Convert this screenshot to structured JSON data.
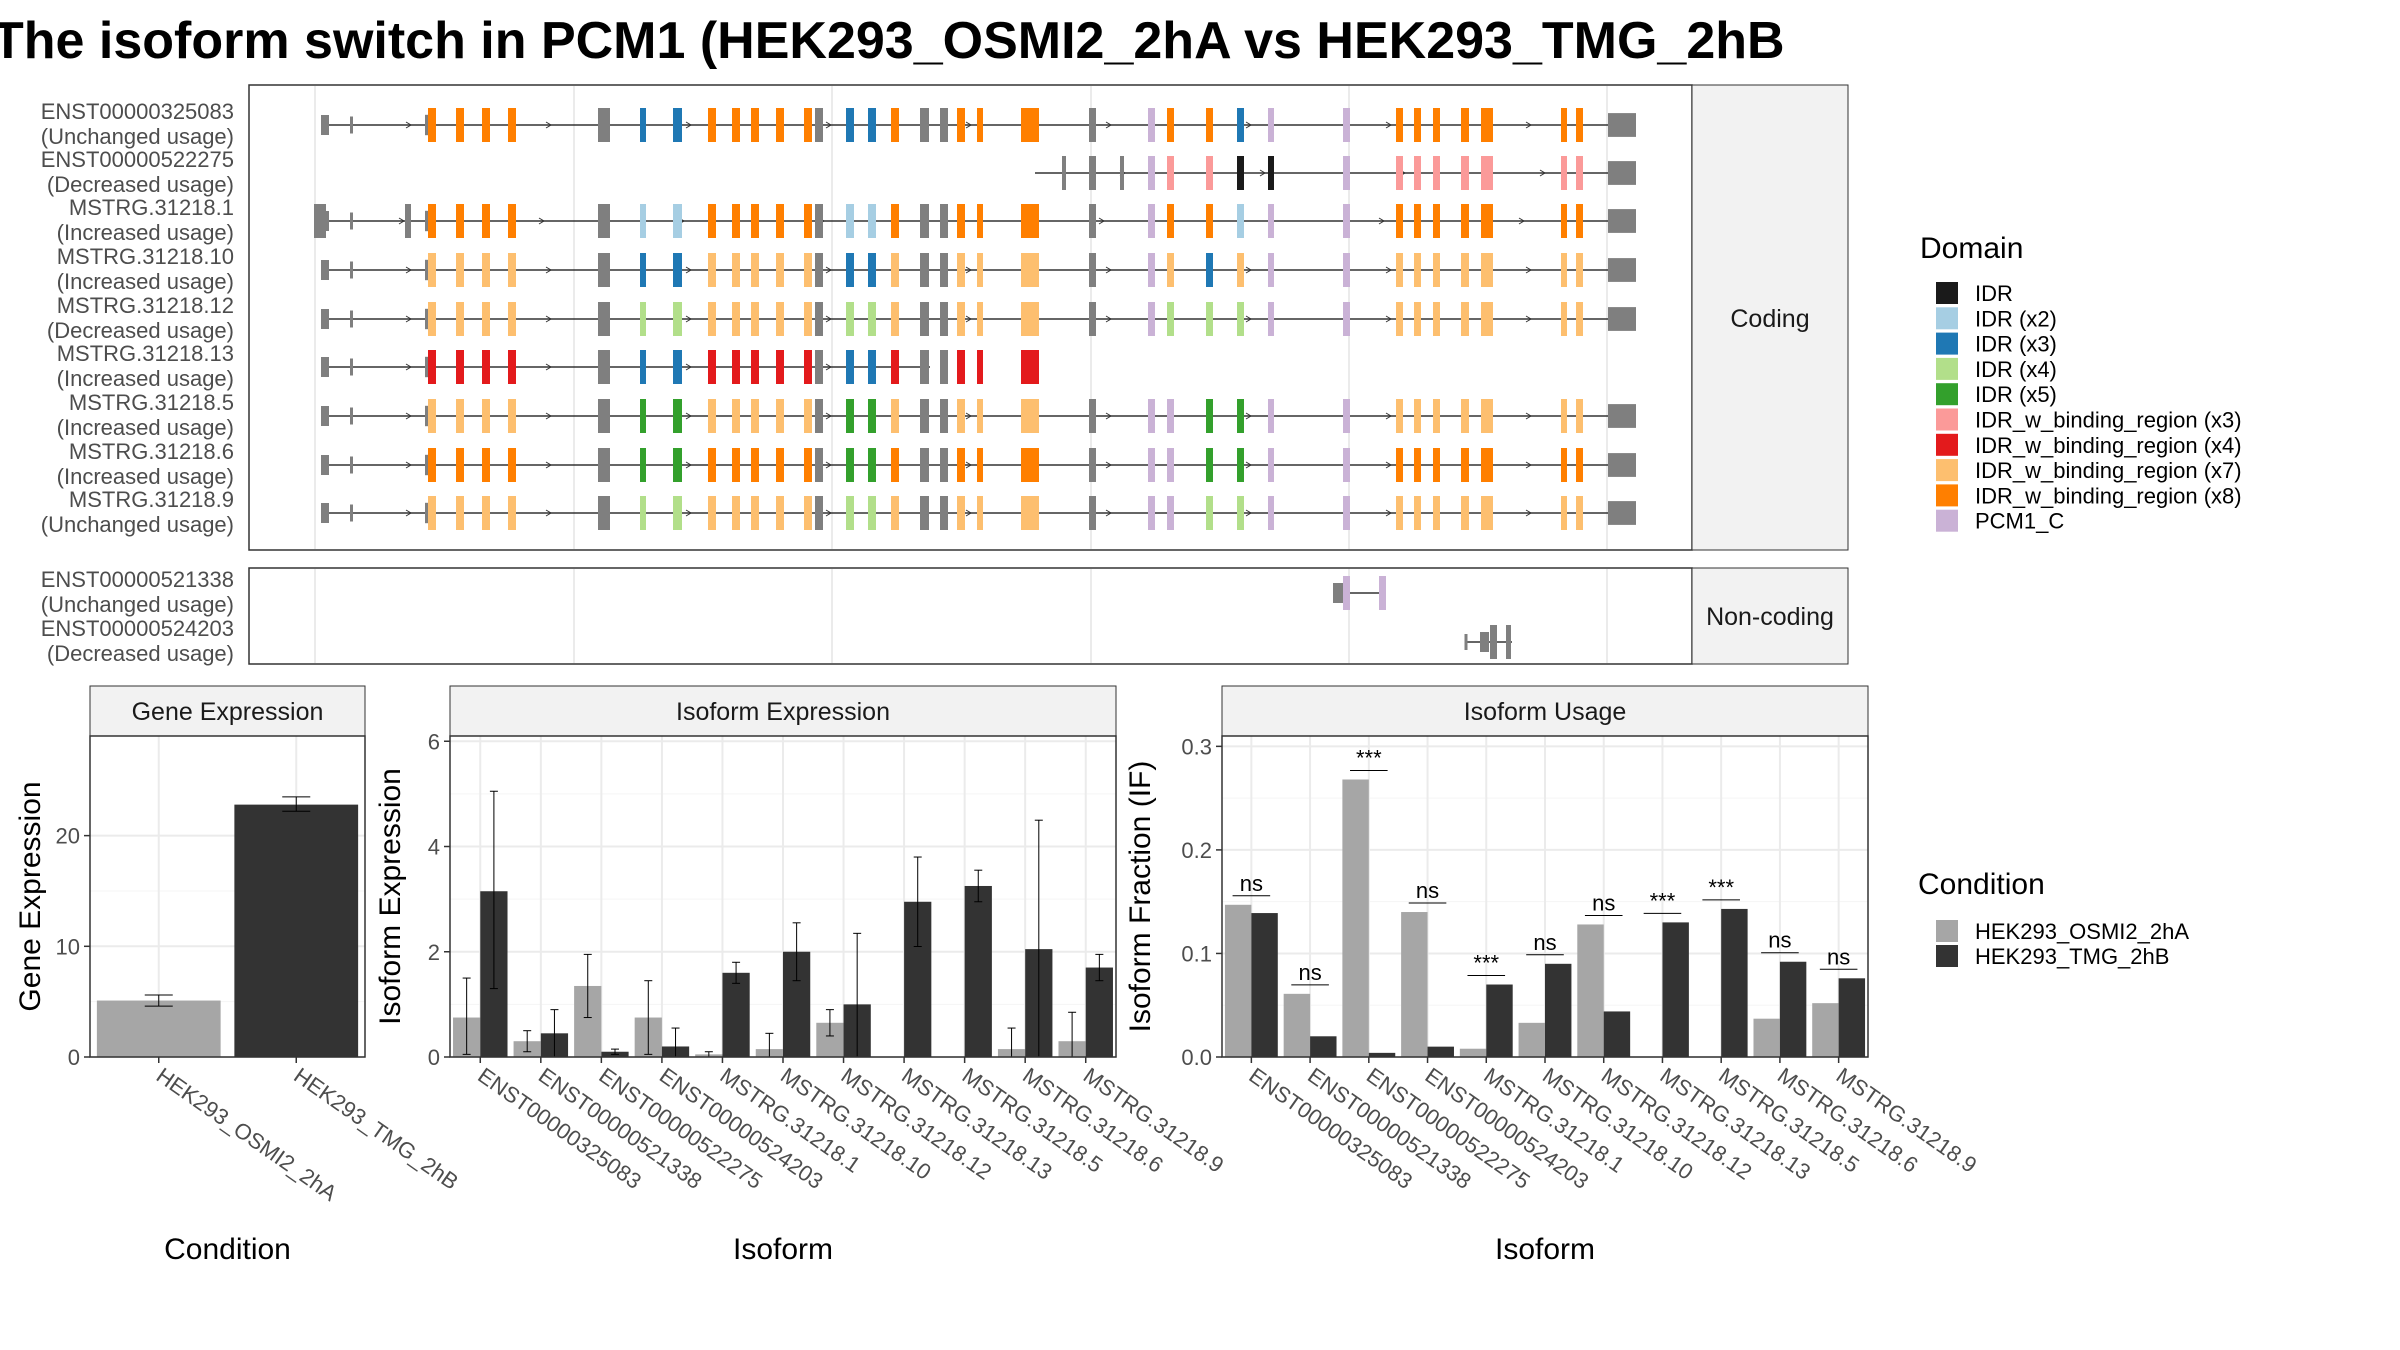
{
  "title": "The isoform switch in PCM1 (HEK293_OSMI2_2hA vs HEK293_TMG_2hB",
  "colors": {
    "IDR": "#1a1a1a",
    "IDR (x2)": "#a6cee3",
    "IDR (x3)": "#1f78b4",
    "IDR (x4)": "#b2df8a",
    "IDR (x5)": "#33a02c",
    "IDR_w_binding_region (x3)": "#fb9a99",
    "IDR_w_binding_region (x4)": "#e31a1c",
    "IDR_w_binding_region (x7)": "#fdbf6f",
    "IDR_w_binding_region (x8)": "#ff7f00",
    "PCM1_C": "#cab2d6",
    "noncoding": "#7f7f7f",
    "cond_a": "#a6a6a6",
    "cond_b": "#333333"
  },
  "domain_legend": {
    "title": "Domain",
    "items": [
      "IDR",
      "IDR (x2)",
      "IDR (x3)",
      "IDR (x4)",
      "IDR (x5)",
      "IDR_w_binding_region (x3)",
      "IDR_w_binding_region (x4)",
      "IDR_w_binding_region (x7)",
      "IDR_w_binding_region (x8)",
      "PCM1_C"
    ]
  },
  "condition_legend": {
    "title": "Condition",
    "items": [
      "HEK293_OSMI2_2hA",
      "HEK293_TMG_2hB"
    ]
  },
  "structure": {
    "coding_strip": "Coding",
    "noncoding_strip": "Non-coding",
    "coding_isoforms": [
      {
        "id": "ENST00000325083",
        "usage": "(Unchanged usage)"
      },
      {
        "id": "ENST00000522275",
        "usage": "(Decreased usage)"
      },
      {
        "id": "MSTRG.31218.1",
        "usage": "(Increased usage)"
      },
      {
        "id": "MSTRG.31218.10",
        "usage": "(Increased usage)"
      },
      {
        "id": "MSTRG.31218.12",
        "usage": "(Decreased usage)"
      },
      {
        "id": "MSTRG.31218.13",
        "usage": "(Increased usage)"
      },
      {
        "id": "MSTRG.31218.5",
        "usage": "(Increased usage)"
      },
      {
        "id": "MSTRG.31218.6",
        "usage": "(Increased usage)"
      },
      {
        "id": "MSTRG.31218.9",
        "usage": "(Unchanged usage)"
      }
    ],
    "noncoding_isoforms": [
      {
        "id": "ENST00000521338",
        "usage": "(Unchanged usage)"
      },
      {
        "id": "ENST00000524203",
        "usage": "(Decreased usage)"
      }
    ]
  },
  "chart_data": [
    {
      "type": "bar",
      "panel": "Gene Expression",
      "xlabel": "Condition",
      "ylabel": "Gene Expression",
      "categories": [
        "HEK293_OSMI2_2hA",
        "HEK293_TMG_2hB"
      ],
      "values": [
        5.1,
        22.8
      ],
      "errors": [
        [
          4.6,
          5.6
        ],
        [
          22.2,
          23.5
        ]
      ],
      "yticks": [
        0,
        10,
        20
      ],
      "ylim": [
        0,
        29
      ]
    },
    {
      "type": "bar",
      "panel": "Isoform Expression",
      "xlabel": "Isoform",
      "ylabel": "Isoform Expression",
      "categories": [
        "ENST00000325083",
        "ENST00000521338",
        "ENST00000522275",
        "ENST00000524203",
        "MSTRG.31218.1",
        "MSTRG.31218.10",
        "MSTRG.31218.12",
        "MSTRG.31218.13",
        "MSTRG.31218.5",
        "MSTRG.31218.6",
        "MSTRG.31218.9"
      ],
      "series": [
        {
          "name": "HEK293_OSMI2_2hA",
          "values": [
            0.75,
            0.3,
            1.35,
            0.75,
            0.05,
            0.15,
            0.65,
            0.0,
            0.0,
            0.15,
            0.3
          ],
          "errors": [
            [
              0.05,
              1.5
            ],
            [
              0.1,
              0.5
            ],
            [
              0.75,
              1.95
            ],
            [
              0.05,
              1.45
            ],
            [
              0.0,
              0.1
            ],
            [
              0.0,
              0.45
            ],
            [
              0.4,
              0.9
            ],
            [
              0.0,
              0.0
            ],
            [
              0.0,
              0.0
            ],
            [
              0.0,
              0.55
            ],
            [
              0.0,
              0.85
            ]
          ]
        },
        {
          "name": "HEK293_TMG_2hB",
          "values": [
            3.15,
            0.45,
            0.1,
            0.2,
            1.6,
            2.0,
            1.0,
            2.95,
            3.25,
            2.05,
            1.7
          ],
          "errors": [
            [
              1.3,
              5.05
            ],
            [
              0.0,
              0.9
            ],
            [
              0.05,
              0.15
            ],
            [
              0.0,
              0.55
            ],
            [
              1.4,
              1.8
            ],
            [
              1.45,
              2.55
            ],
            [
              0.0,
              2.35
            ],
            [
              2.1,
              3.8
            ],
            [
              2.95,
              3.55
            ],
            [
              0.0,
              4.5
            ],
            [
              1.45,
              1.95
            ]
          ]
        }
      ],
      "yticks": [
        0,
        2,
        4,
        6
      ],
      "ylim": [
        0,
        6.1
      ]
    },
    {
      "type": "bar",
      "panel": "Isoform Usage",
      "xlabel": "Isoform",
      "ylabel": "Isoform Fraction (IF)",
      "categories": [
        "ENST00000325083",
        "ENST00000521338",
        "ENST00000522275",
        "ENST00000524203",
        "MSTRG.31218.1",
        "MSTRG.31218.10",
        "MSTRG.31218.12",
        "MSTRG.31218.13",
        "MSTRG.31218.5",
        "MSTRG.31218.6",
        "MSTRG.31218.9"
      ],
      "series": [
        {
          "name": "HEK293_OSMI2_2hA",
          "values": [
            0.147,
            0.061,
            0.268,
            0.14,
            0.008,
            0.033,
            0.128,
            0.0,
            0.0,
            0.037,
            0.052
          ]
        },
        {
          "name": "HEK293_TMG_2hB",
          "values": [
            0.139,
            0.02,
            0.004,
            0.01,
            0.07,
            0.09,
            0.044,
            0.13,
            0.143,
            0.092,
            0.076
          ]
        }
      ],
      "significance": [
        "ns",
        "ns",
        "***",
        "ns",
        "***",
        "ns",
        "ns",
        "***",
        "***",
        "ns",
        "ns"
      ],
      "yticks": [
        0.0,
        0.1,
        0.2,
        0.3
      ],
      "ylim": [
        0,
        0.31
      ]
    }
  ]
}
